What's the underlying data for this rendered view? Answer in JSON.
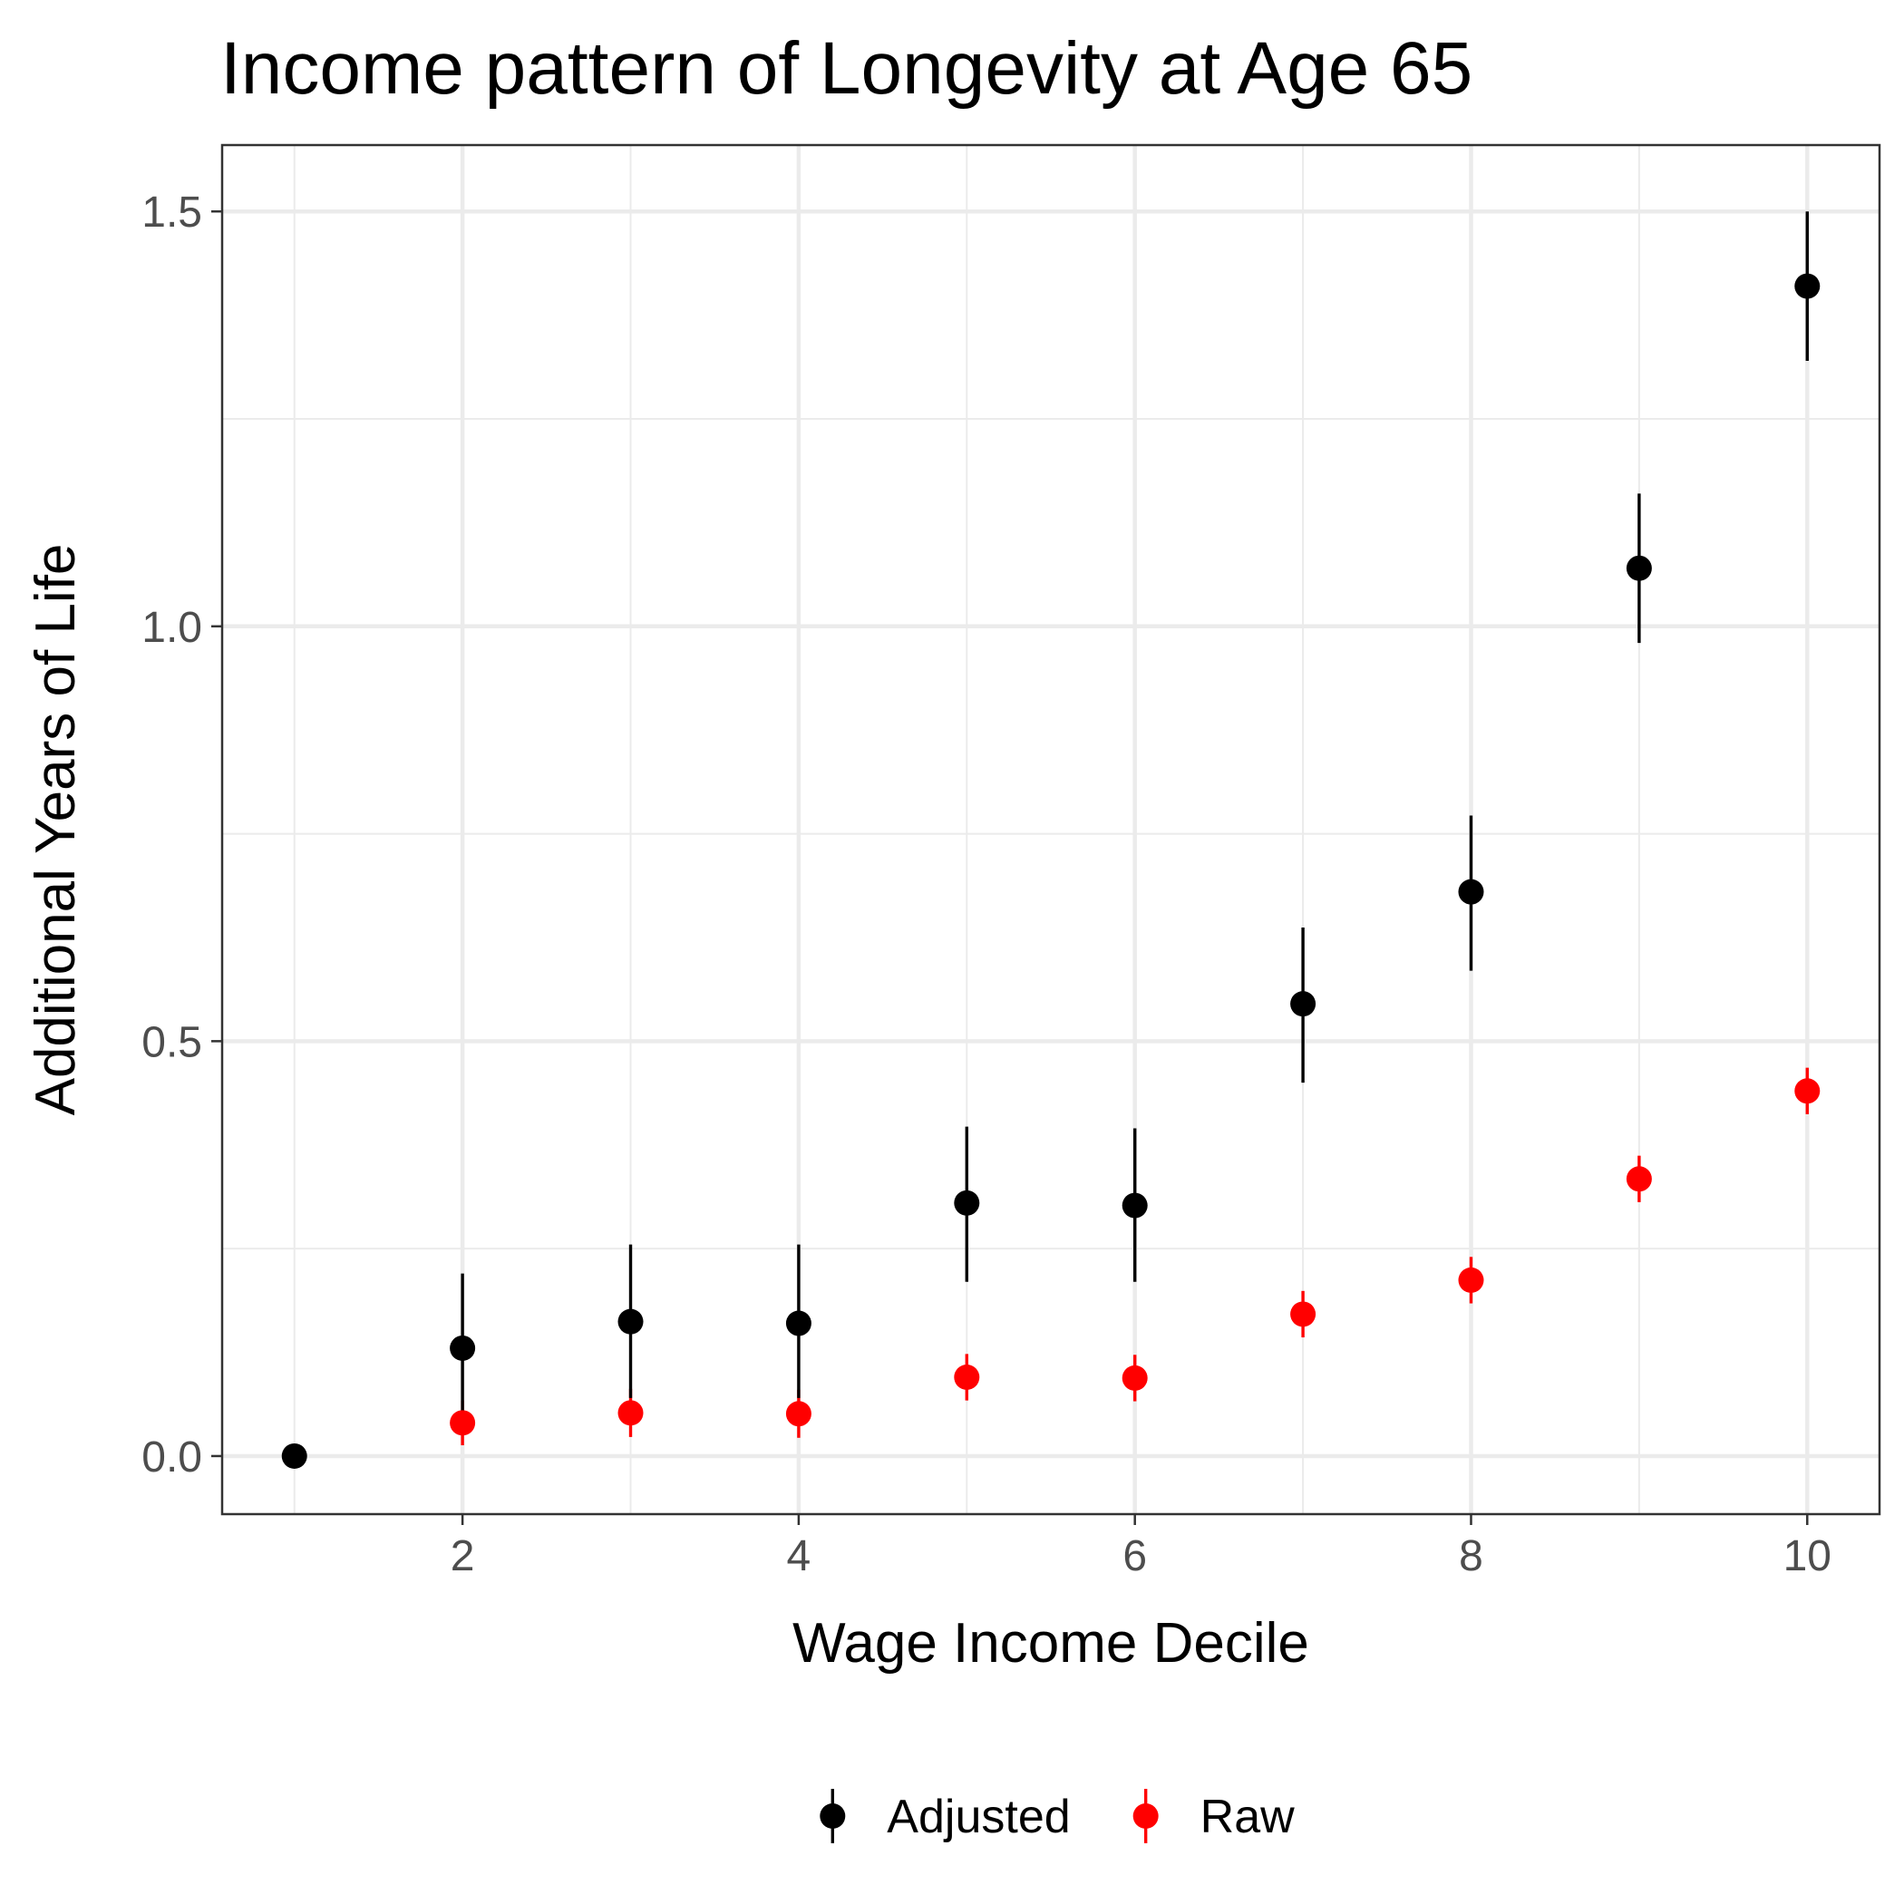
{
  "chart_data": {
    "type": "scatter",
    "title": "Income pattern of Longevity at Age 65",
    "xlabel": "Wage Income Decile",
    "ylabel": "Additional Years of Life",
    "xlim": [
      0.57,
      10.43
    ],
    "ylim": [
      -0.07,
      1.58
    ],
    "xticks": [
      2,
      4,
      6,
      8,
      10
    ],
    "xtick_labels": [
      "2",
      "4",
      "6",
      "8",
      "10"
    ],
    "yticks": [
      0,
      0.5,
      1.0,
      1.5
    ],
    "ytick_labels": [
      "0.0",
      "0.5",
      "1.0",
      "1.5"
    ],
    "grid": true,
    "legend_position": "bottom",
    "series": [
      {
        "name": "Adjusted",
        "color": "#000000",
        "x": [
          1,
          2,
          3,
          4,
          5,
          6,
          7,
          8,
          9,
          10
        ],
        "y": [
          0.0,
          0.13,
          0.162,
          0.16,
          0.305,
          0.302,
          0.545,
          0.68,
          1.07,
          1.41
        ],
        "lower": [
          0.0,
          0.04,
          0.07,
          0.07,
          0.21,
          0.21,
          0.45,
          0.585,
          0.98,
          1.32
        ],
        "upper": [
          0.0,
          0.22,
          0.255,
          0.255,
          0.397,
          0.395,
          0.637,
          0.772,
          1.16,
          1.5
        ]
      },
      {
        "name": "Raw",
        "color": "#ff0000",
        "x": [
          2,
          3,
          4,
          5,
          6,
          7,
          8,
          9,
          10
        ],
        "y": [
          0.04,
          0.052,
          0.051,
          0.095,
          0.094,
          0.171,
          0.212,
          0.334,
          0.44
        ],
        "lower": [
          0.013,
          0.023,
          0.022,
          0.067,
          0.066,
          0.143,
          0.184,
          0.306,
          0.412
        ],
        "upper": [
          0.067,
          0.081,
          0.08,
          0.123,
          0.122,
          0.199,
          0.24,
          0.362,
          0.468
        ]
      }
    ]
  }
}
